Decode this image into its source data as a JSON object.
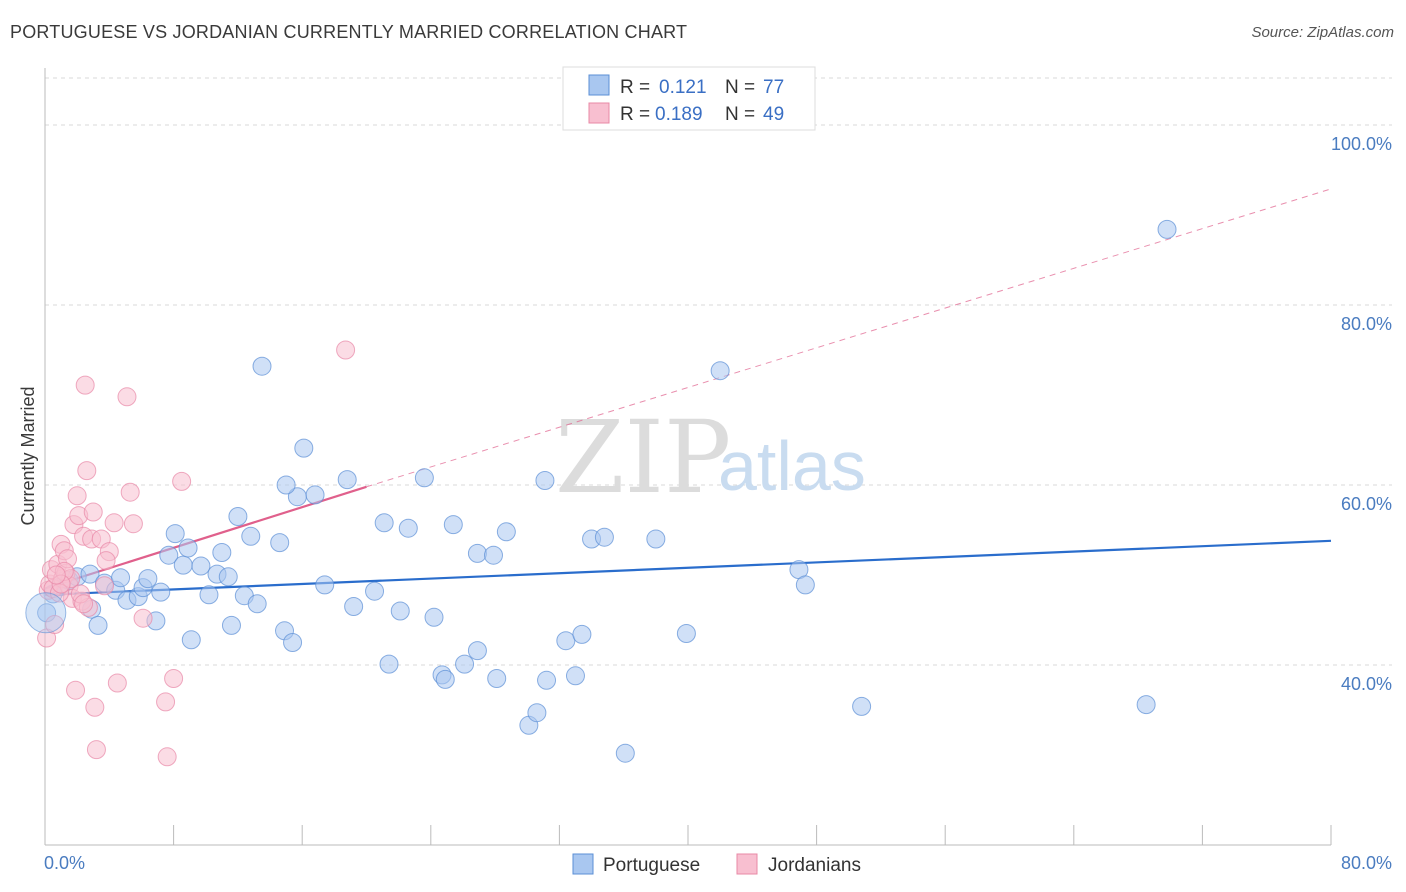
{
  "title": "PORTUGUESE VS JORDANIAN CURRENTLY MARRIED CORRELATION CHART",
  "source": "Source: ZipAtlas.com",
  "watermark": {
    "zip": "ZIP",
    "atlas": "atlas"
  },
  "legend": {
    "r_label": "R =",
    "n_label": "N =",
    "entries": [
      {
        "r": "0.121",
        "n": "77"
      },
      {
        "r": "0.189",
        "n": "49"
      }
    ]
  },
  "colors": {
    "portuguese_fill": "#a9c7f0",
    "portuguese_stroke": "#5b8fd6",
    "portuguese_line": "#2a6dcc",
    "jordanian_fill": "#f8bfd0",
    "jordanian_stroke": "#e888a6",
    "jordanian_line": "#e0608c"
  },
  "chart_data": {
    "type": "scatter",
    "title": "PORTUGUESE VS JORDANIAN CURRENTLY MARRIED CORRELATION CHART",
    "xlabel": "",
    "ylabel": "Currently Married",
    "xlim": [
      0,
      80
    ],
    "ylim": [
      20,
      105
    ],
    "x_tick_labels": [
      "0.0%",
      "80.0%"
    ],
    "y_ticks": [
      40,
      60,
      80,
      100
    ],
    "y_tick_labels": [
      "40.0%",
      "60.0%",
      "80.0%",
      "100.0%"
    ],
    "legend_labels": [
      "Portuguese",
      "Jordanians"
    ],
    "series": [
      {
        "name": "Portuguese",
        "r": 0.121,
        "n": 77,
        "trend": {
          "x": [
            0,
            80
          ],
          "y": [
            47.8,
            53.8
          ]
        },
        "points": [
          [
            0.1,
            45.8
          ],
          [
            0.5,
            47.9
          ],
          [
            1.0,
            48.7
          ],
          [
            1.5,
            49.4
          ],
          [
            2.0,
            49.8
          ],
          [
            2.8,
            50.1
          ],
          [
            2.9,
            46.2
          ],
          [
            3.7,
            49.1
          ],
          [
            3.3,
            44.4
          ],
          [
            4.4,
            48.3
          ],
          [
            4.7,
            49.7
          ],
          [
            5.1,
            47.2
          ],
          [
            5.8,
            47.6
          ],
          [
            6.1,
            48.6
          ],
          [
            6.4,
            49.6
          ],
          [
            6.9,
            44.9
          ],
          [
            7.2,
            48.1
          ],
          [
            7.7,
            52.2
          ],
          [
            8.1,
            54.6
          ],
          [
            8.6,
            51.1
          ],
          [
            8.9,
            53.0
          ],
          [
            9.1,
            42.8
          ],
          [
            9.7,
            51.0
          ],
          [
            10.2,
            47.8
          ],
          [
            10.7,
            50.1
          ],
          [
            11.0,
            52.5
          ],
          [
            11.4,
            49.8
          ],
          [
            11.6,
            44.4
          ],
          [
            12.0,
            56.5
          ],
          [
            12.4,
            47.7
          ],
          [
            12.8,
            54.3
          ],
          [
            13.2,
            46.8
          ],
          [
            13.5,
            73.2
          ],
          [
            14.6,
            53.6
          ],
          [
            14.9,
            43.8
          ],
          [
            15.4,
            42.5
          ],
          [
            15.7,
            58.7
          ],
          [
            16.1,
            64.1
          ],
          [
            16.8,
            58.9
          ],
          [
            17.4,
            48.9
          ],
          [
            18.8,
            60.6
          ],
          [
            19.2,
            46.5
          ],
          [
            20.5,
            48.2
          ],
          [
            21.1,
            55.8
          ],
          [
            21.4,
            40.1
          ],
          [
            22.1,
            46.0
          ],
          [
            22.6,
            55.2
          ],
          [
            23.6,
            60.8
          ],
          [
            24.2,
            45.3
          ],
          [
            24.7,
            38.9
          ],
          [
            24.9,
            38.4
          ],
          [
            25.4,
            55.6
          ],
          [
            26.1,
            40.1
          ],
          [
            26.9,
            41.6
          ],
          [
            26.9,
            52.4
          ],
          [
            27.9,
            52.2
          ],
          [
            28.1,
            38.5
          ],
          [
            28.7,
            54.8
          ],
          [
            30.1,
            33.3
          ],
          [
            31.1,
            60.5
          ],
          [
            31.2,
            38.3
          ],
          [
            30.6,
            34.7
          ],
          [
            32.4,
            42.7
          ],
          [
            33.0,
            38.8
          ],
          [
            33.4,
            43.4
          ],
          [
            34.0,
            54.0
          ],
          [
            34.8,
            54.2
          ],
          [
            36.1,
            30.2
          ],
          [
            38.0,
            54.0
          ],
          [
            39.9,
            43.5
          ],
          [
            42.0,
            72.7
          ],
          [
            46.9,
            50.6
          ],
          [
            47.3,
            48.9
          ],
          [
            50.8,
            35.4
          ],
          [
            69.8,
            88.4
          ],
          [
            68.5,
            35.6
          ],
          [
            15.0,
            60.0
          ]
        ]
      },
      {
        "name": "Jordanians",
        "r": 0.189,
        "n": 49,
        "trend": {
          "x": [
            0,
            20
          ],
          "y": [
            48.5,
            59.8
          ]
        },
        "trend_dashed": {
          "x": [
            20,
            80
          ],
          "y": [
            59.8,
            92.9
          ]
        },
        "points": [
          [
            0.1,
            43.0
          ],
          [
            0.2,
            48.3
          ],
          [
            0.3,
            49.0
          ],
          [
            0.4,
            50.6
          ],
          [
            0.5,
            48.5
          ],
          [
            0.6,
            44.5
          ],
          [
            0.8,
            51.2
          ],
          [
            1.0,
            53.4
          ],
          [
            1.1,
            49.6
          ],
          [
            1.2,
            52.7
          ],
          [
            1.3,
            50.2
          ],
          [
            1.4,
            51.8
          ],
          [
            1.5,
            48.8
          ],
          [
            1.7,
            47.4
          ],
          [
            1.8,
            55.6
          ],
          [
            1.9,
            37.2
          ],
          [
            2.0,
            58.8
          ],
          [
            2.1,
            56.6
          ],
          [
            2.3,
            47.1
          ],
          [
            2.4,
            54.3
          ],
          [
            2.5,
            71.1
          ],
          [
            2.6,
            61.6
          ],
          [
            2.7,
            46.4
          ],
          [
            2.9,
            54.0
          ],
          [
            3.0,
            57.0
          ],
          [
            3.1,
            35.3
          ],
          [
            3.2,
            30.6
          ],
          [
            3.5,
            54.0
          ],
          [
            3.7,
            48.8
          ],
          [
            4.0,
            52.6
          ],
          [
            4.3,
            55.8
          ],
          [
            4.5,
            38.0
          ],
          [
            5.1,
            69.8
          ],
          [
            5.3,
            59.2
          ],
          [
            5.5,
            55.7
          ],
          [
            6.1,
            45.2
          ],
          [
            7.5,
            35.9
          ],
          [
            7.6,
            29.8
          ],
          [
            8.0,
            38.5
          ],
          [
            8.5,
            60.4
          ],
          [
            18.7,
            75.0
          ],
          [
            1.6,
            49.6
          ],
          [
            0.9,
            48.0
          ],
          [
            1.2,
            50.4
          ],
          [
            2.2,
            47.9
          ],
          [
            2.4,
            46.8
          ],
          [
            1.0,
            49.0
          ],
          [
            0.7,
            50.0
          ],
          [
            3.8,
            51.6
          ]
        ]
      }
    ]
  }
}
